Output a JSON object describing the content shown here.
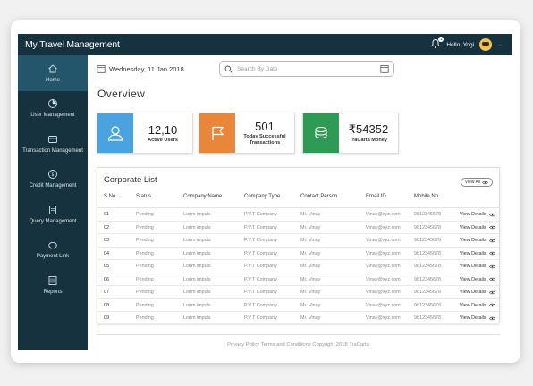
{
  "header": {
    "app_title": "My Travel Management",
    "greeting": "Hello, Yogi",
    "notification_count": "1"
  },
  "sidebar": {
    "items": [
      {
        "label": "Home",
        "icon": "home-icon",
        "active": true
      },
      {
        "label": "User Management",
        "icon": "user-management-icon"
      },
      {
        "label": "Transaction Management",
        "icon": "transaction-icon"
      },
      {
        "label": "Credit Management",
        "icon": "credit-icon"
      },
      {
        "label": "Query Management",
        "icon": "query-icon"
      },
      {
        "label": "Payment Link",
        "icon": "piggy-bank-icon"
      },
      {
        "label": "Reports",
        "icon": "reports-icon"
      }
    ]
  },
  "toolbar": {
    "date": "Wednesday, 11 Jan 2018",
    "search_placeholder": "Search By Date"
  },
  "overview_title": "Overview",
  "cards": [
    {
      "value": "12,10",
      "label": "Active Users",
      "color": "#4aa3e0",
      "icon": "users-icon"
    },
    {
      "value": "501",
      "label": "Today Successful Transactions",
      "color": "#e8873a",
      "icon": "flag-icon"
    },
    {
      "value": "₹54352",
      "label": "TraCarta Money",
      "color": "#2e9b55",
      "icon": "money-icon"
    }
  ],
  "corporate_list": {
    "title": "Corporate List",
    "view_all": "View All",
    "columns": [
      "S.No",
      "Status",
      "Company Name",
      "Company Type",
      "Contact Person",
      "Email ID",
      "Mobile  No"
    ],
    "rows": [
      {
        "sno": "01",
        "status": "Pending",
        "company": "Lorim impuls",
        "type": "P.V.T Company",
        "contact": "Mr. Vinay",
        "email": "Vinay@xyz.com",
        "mobile": "9812345678",
        "action": "View Details"
      },
      {
        "sno": "02",
        "status": "Pending",
        "company": "Lorim impuls",
        "type": "P.V.T Company",
        "contact": "Mr. Vinay",
        "email": "Vinay@xyz.com",
        "mobile": "9812345678",
        "action": "View Details"
      },
      {
        "sno": "03",
        "status": "Pending",
        "company": "Lorim impuls",
        "type": "P.V.T Company",
        "contact": "Mr. Vinay",
        "email": "Vinay@xyz.com",
        "mobile": "9812345678",
        "action": "View Details"
      },
      {
        "sno": "04",
        "status": "Pending",
        "company": "Lorim impuls",
        "type": "P.V.T Company",
        "contact": "Mr. Vinay",
        "email": "Vinay@xyz.com",
        "mobile": "9812345678",
        "action": "View Details"
      },
      {
        "sno": "05",
        "status": "Pending",
        "company": "Lorim impuls",
        "type": "P.V.T Company",
        "contact": "Mr. Vinay",
        "email": "Vinay@xyz.com",
        "mobile": "9812345678",
        "action": "View Details"
      },
      {
        "sno": "06",
        "status": "Pending",
        "company": "Lorim impuls",
        "type": "P.V.T Company",
        "contact": "Mr. Vinay",
        "email": "Vinay@xyz.com",
        "mobile": "9812345678",
        "action": "View Details"
      },
      {
        "sno": "07",
        "status": "Pending",
        "company": "Lorim impuls",
        "type": "P.V.T Company",
        "contact": "Mr. Vinay",
        "email": "Vinay@xyz.com",
        "mobile": "9812345678",
        "action": "View Details"
      },
      {
        "sno": "08",
        "status": "Pending",
        "company": "Lorim impuls",
        "type": "P.V.T Company",
        "contact": "Mr. Vinay",
        "email": "Vinay@xyz.com",
        "mobile": "9812345678",
        "action": "View Details"
      },
      {
        "sno": "09",
        "status": "Pending",
        "company": "Lorim impuls",
        "type": "P.V.T Company",
        "contact": "Mr. Vinay",
        "email": "Vinay@xyz.com",
        "mobile": "9812345678",
        "action": "View Details"
      }
    ]
  },
  "footer": {
    "text": "Privacy Policy Terms and Conditions Copyright  2018 TraCarta"
  }
}
